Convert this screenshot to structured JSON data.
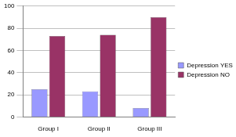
{
  "chart_data": {
    "type": "bar",
    "categories": [
      "Group I",
      "Group II",
      "Group III"
    ],
    "series": [
      {
        "name": "Depression YES",
        "color": "#9999ff",
        "values": [
          25,
          23,
          8
        ]
      },
      {
        "name": "Depression NO",
        "color": "#993366",
        "values": [
          73,
          74,
          90
        ]
      }
    ],
    "ylim": [
      0,
      100
    ],
    "yticks": [
      0,
      20,
      40,
      60,
      80,
      100
    ],
    "grid": true,
    "legend": "right"
  }
}
